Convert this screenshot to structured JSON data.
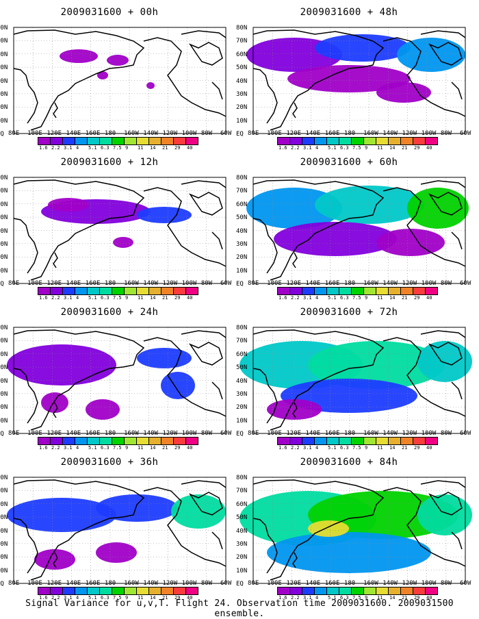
{
  "panels": [
    {
      "title": "2009031600 + 00h"
    },
    {
      "title": "2009031600 + 48h"
    },
    {
      "title": "2009031600 + 12h"
    },
    {
      "title": "2009031600 + 60h"
    },
    {
      "title": "2009031600 + 24h"
    },
    {
      "title": "2009031600 + 72h"
    },
    {
      "title": "2009031600 + 36h"
    },
    {
      "title": "2009031600 + 84h"
    }
  ],
  "lat_labels": [
    "80N",
    "70N",
    "60N",
    "50N",
    "40N",
    "30N",
    "20N",
    "10N",
    "EQ"
  ],
  "lon_labels": [
    "80E",
    "100E",
    "120E",
    "140E",
    "160E",
    "180",
    "160W",
    "140W",
    "120W",
    "100W",
    "80W",
    "60W"
  ],
  "colorbar": {
    "levels": [
      "1.6",
      "2.2",
      "3.1",
      "4",
      "5.1",
      "6.3",
      "7.5",
      "9",
      "11",
      "14",
      "21",
      "29",
      "40"
    ],
    "colors": [
      "#a000c8",
      "#8200dc",
      "#1e3cff",
      "#0096f0",
      "#00c8c8",
      "#00dca0",
      "#00d200",
      "#a0e632",
      "#e6dc32",
      "#e6af2d",
      "#f08228",
      "#fa3c3c",
      "#f00082"
    ]
  },
  "footer": "Signal Variance for u,v,T. Flight 24. Observation time 2009031600. 2009031500 ensemble."
}
